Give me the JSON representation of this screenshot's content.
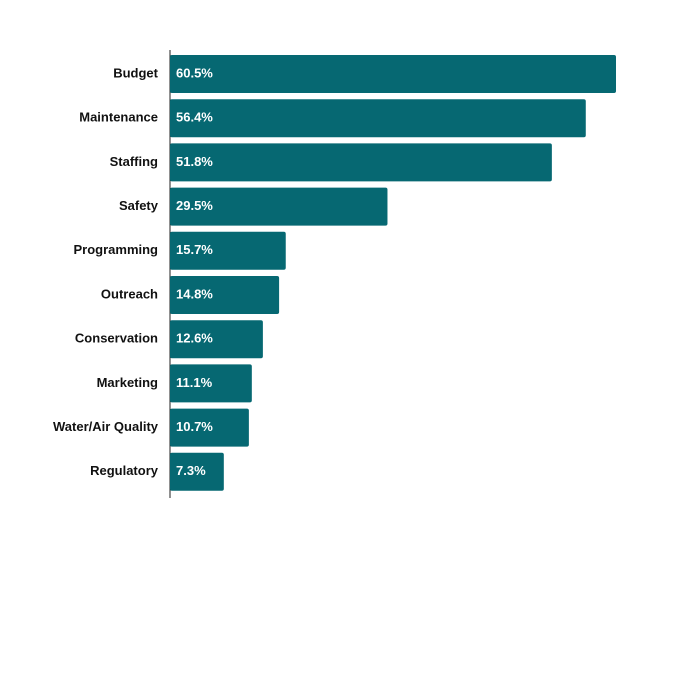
{
  "chart_data": {
    "type": "bar",
    "orientation": "horizontal",
    "categories": [
      "Budget",
      "Maintenance",
      "Staffing",
      "Safety",
      "Programming",
      "Outreach",
      "Conservation",
      "Marketing",
      "Water/Air Quality",
      "Regulatory"
    ],
    "values": [
      60.5,
      56.4,
      51.8,
      29.5,
      15.7,
      14.8,
      12.6,
      11.1,
      10.7,
      7.3
    ],
    "value_labels": [
      "60.5%",
      "56.4%",
      "51.8%",
      "29.5%",
      "15.7%",
      "14.8%",
      "12.6%",
      "11.1%",
      "10.7%",
      "7.3%"
    ],
    "color": "#066872"
  }
}
